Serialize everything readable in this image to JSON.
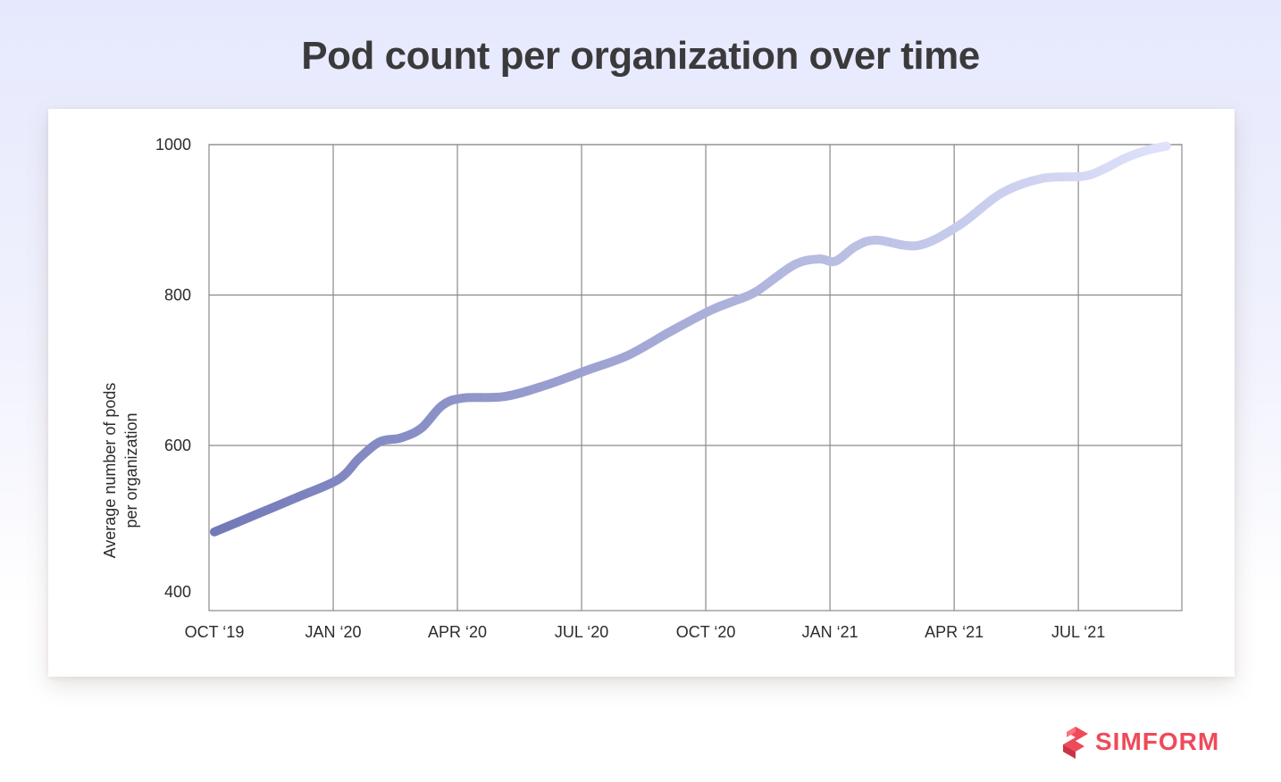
{
  "title": "Pod count per organization over time",
  "brand": {
    "name": "SIMFORM",
    "color": "#ef4a5a",
    "icon": "simform-logo-icon"
  },
  "chart_data": {
    "type": "line",
    "title": "Pod count per organization over time",
    "xlabel": "",
    "ylabel": [
      "Average number of pods",
      "per organization"
    ],
    "xlim": [
      0,
      23.5
    ],
    "ylim": [
      400,
      1000
    ],
    "x_ticks": [
      {
        "x": 0,
        "label": "OCT ‘19"
      },
      {
        "x": 3,
        "label": "JAN ‘20"
      },
      {
        "x": 6,
        "label": "APR ‘20"
      },
      {
        "x": 9,
        "label": "JUL ‘20"
      },
      {
        "x": 12,
        "label": "OCT ‘20"
      },
      {
        "x": 15,
        "label": "JAN ‘21"
      },
      {
        "x": 18,
        "label": "APR ‘21"
      },
      {
        "x": 21,
        "label": "JUL ‘21"
      }
    ],
    "y_ticks": [
      1000,
      800,
      600,
      400
    ],
    "grid": true,
    "line_gradient": [
      "#7279b8",
      "#e0e3fa"
    ],
    "series": [
      {
        "x": [
          0,
          1,
          2,
          3,
          3.5,
          4,
          4.5,
          5,
          5.5,
          6,
          7,
          8,
          9,
          10,
          11,
          12,
          12.6,
          13.1,
          14,
          14.6,
          15,
          15.5,
          16,
          17,
          18,
          19,
          20,
          21,
          21.5,
          22,
          22.5,
          23
        ],
        "y": [
          485,
          508,
          531,
          555,
          583,
          605,
          610,
          623,
          653,
          663,
          665,
          680,
          700,
          720,
          751,
          780,
          793,
          805,
          840,
          848,
          845,
          865,
          873,
          866,
          893,
          935,
          955,
          958,
          968,
          982,
          992,
          998
        ]
      }
    ]
  }
}
